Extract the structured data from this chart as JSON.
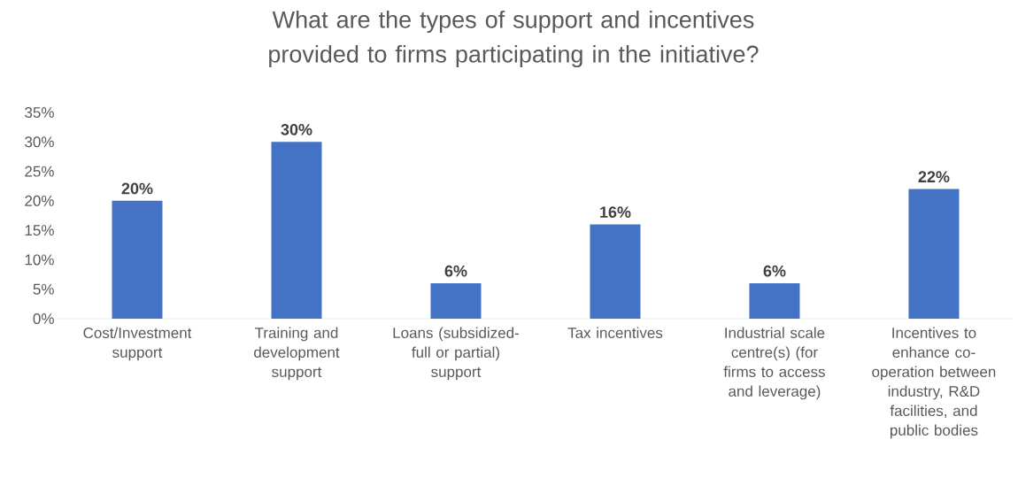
{
  "chart_data": {
    "type": "bar",
    "title": "What are the types of support and incentives provided to firms participating in the initiative?",
    "categories": [
      "Cost/Investment support",
      "Training and development support",
      "Loans (subsidized-full or partial) support",
      "Tax incentives",
      "Industrial scale centre(s) (for firms to access and leverage)",
      "Incentives to enhance co-operation between industry, R&D facilities, and public bodies"
    ],
    "values": [
      20,
      30,
      6,
      16,
      6,
      22
    ],
    "value_labels": [
      "20%",
      "30%",
      "6%",
      "16%",
      "6%",
      "22%"
    ],
    "color": "#4472c4",
    "ylim": [
      0,
      35
    ],
    "yticks": [
      {
        "value": 0,
        "label": "0%"
      },
      {
        "value": 5,
        "label": "5%"
      },
      {
        "value": 10,
        "label": "10%"
      },
      {
        "value": 15,
        "label": "15%"
      },
      {
        "value": 20,
        "label": "20%"
      },
      {
        "value": 25,
        "label": "25%"
      },
      {
        "value": 30,
        "label": "30%"
      },
      {
        "value": 35,
        "label": "35%"
      }
    ],
    "grid": false
  }
}
